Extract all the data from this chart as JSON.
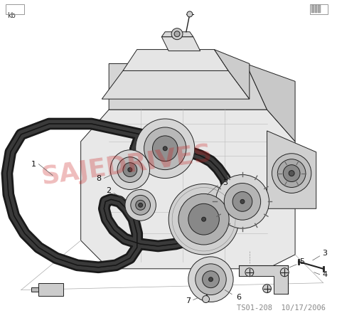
{
  "bg_color": "#ffffff",
  "header_text": "TS01-208  10/17/2006",
  "header_color": "#888888",
  "header_fontsize": 7.5,
  "footer_left": "kb",
  "footer_color": "#333333",
  "footer_fontsize": 7,
  "watermark_text": "SAJEDRIVES",
  "watermark_color": "#cc2222",
  "watermark_alpha": 0.3,
  "watermark_rotation": 8,
  "watermark_fontsize": 26,
  "ec": "#222222",
  "lw": 0.7,
  "figsize": [
    4.74,
    4.4
  ],
  "dpi": 100
}
